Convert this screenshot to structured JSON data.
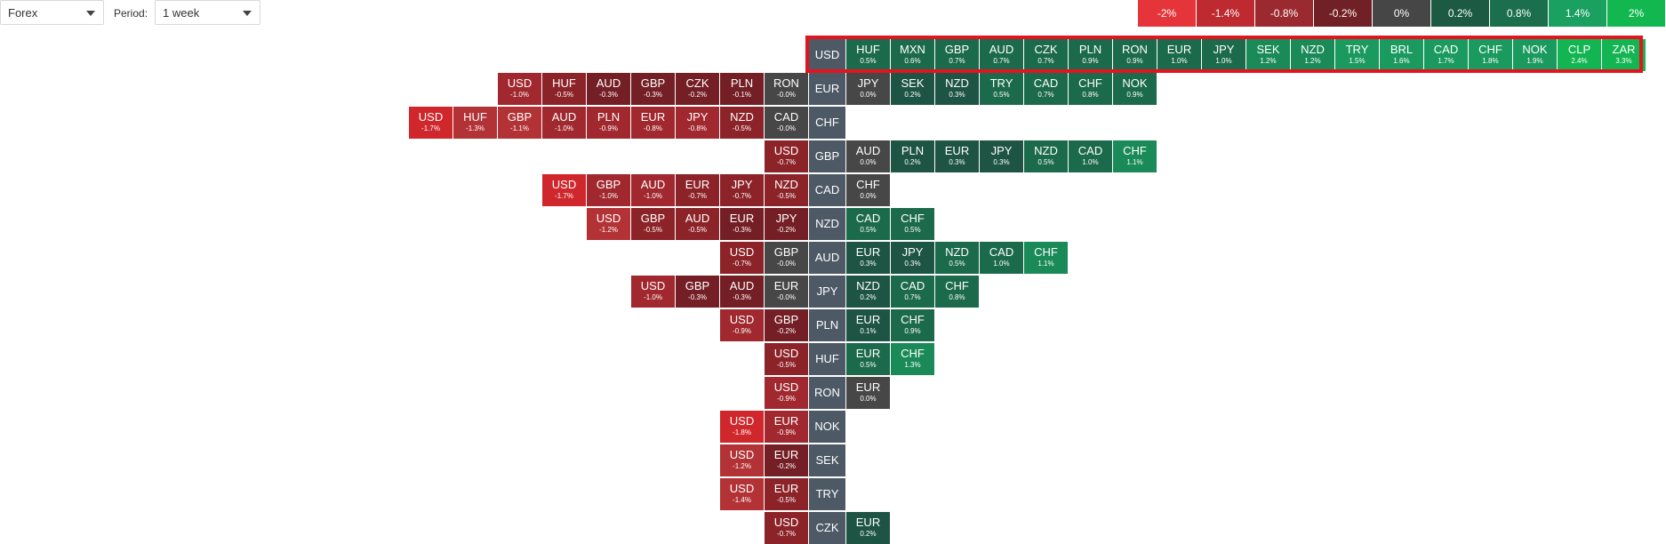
{
  "filters": {
    "market": "Forex",
    "period_label": "Period:",
    "period": "1 week"
  },
  "legend": [
    {
      "label": "-2%",
      "color": "#e5353b"
    },
    {
      "label": "-1.4%",
      "color": "#bf2a31"
    },
    {
      "label": "-0.8%",
      "color": "#9b2a30"
    },
    {
      "label": "-0.2%",
      "color": "#712025"
    },
    {
      "label": "0%",
      "color": "#464646"
    },
    {
      "label": "0.2%",
      "color": "#1c5a43"
    },
    {
      "label": "0.8%",
      "color": "#1b6f4c"
    },
    {
      "label": "1.4%",
      "color": "#1aa061"
    },
    {
      "label": "2%",
      "color": "#12b84f"
    }
  ],
  "rows": [
    {
      "base": "USD",
      "left": [],
      "right": [
        {
          "code": "HUF",
          "change": "0.5%"
        },
        {
          "code": "MXN",
          "change": "0.6%"
        },
        {
          "code": "GBP",
          "change": "0.7%"
        },
        {
          "code": "AUD",
          "change": "0.7%"
        },
        {
          "code": "CZK",
          "change": "0.7%"
        },
        {
          "code": "PLN",
          "change": "0.9%"
        },
        {
          "code": "RON",
          "change": "0.9%"
        },
        {
          "code": "EUR",
          "change": "1.0%"
        },
        {
          "code": "JPY",
          "change": "1.0%"
        },
        {
          "code": "SEK",
          "change": "1.2%"
        },
        {
          "code": "NZD",
          "change": "1.2%"
        },
        {
          "code": "TRY",
          "change": "1.5%"
        },
        {
          "code": "BRL",
          "change": "1.6%"
        },
        {
          "code": "CAD",
          "change": "1.7%"
        },
        {
          "code": "CHF",
          "change": "1.8%"
        },
        {
          "code": "NOK",
          "change": "1.9%"
        },
        {
          "code": "CLP",
          "change": "2.4%"
        },
        {
          "code": "ZAR",
          "change": "3.3%"
        }
      ]
    },
    {
      "base": "EUR",
      "left": [
        {
          "code": "USD",
          "change": "-1.0%"
        },
        {
          "code": "HUF",
          "change": "-0.5%"
        },
        {
          "code": "AUD",
          "change": "-0.3%"
        },
        {
          "code": "GBP",
          "change": "-0.3%"
        },
        {
          "code": "CZK",
          "change": "-0.2%"
        },
        {
          "code": "PLN",
          "change": "-0.1%"
        },
        {
          "code": "RON",
          "change": "-0.0%"
        }
      ],
      "right": [
        {
          "code": "JPY",
          "change": "0.0%"
        },
        {
          "code": "SEK",
          "change": "0.2%"
        },
        {
          "code": "NZD",
          "change": "0.3%"
        },
        {
          "code": "TRY",
          "change": "0.5%"
        },
        {
          "code": "CAD",
          "change": "0.7%"
        },
        {
          "code": "CHF",
          "change": "0.8%"
        },
        {
          "code": "NOK",
          "change": "0.9%"
        }
      ]
    },
    {
      "base": "CHF",
      "left": [
        {
          "code": "USD",
          "change": "-1.7%"
        },
        {
          "code": "HUF",
          "change": "-1.3%"
        },
        {
          "code": "GBP",
          "change": "-1.1%"
        },
        {
          "code": "AUD",
          "change": "-1.0%"
        },
        {
          "code": "PLN",
          "change": "-0.9%"
        },
        {
          "code": "EUR",
          "change": "-0.8%"
        },
        {
          "code": "JPY",
          "change": "-0.8%"
        },
        {
          "code": "NZD",
          "change": "-0.5%"
        },
        {
          "code": "CAD",
          "change": "-0.0%"
        }
      ],
      "right": []
    },
    {
      "base": "GBP",
      "left": [
        {
          "code": "USD",
          "change": "-0.7%"
        }
      ],
      "right": [
        {
          "code": "AUD",
          "change": "0.0%"
        },
        {
          "code": "PLN",
          "change": "0.2%"
        },
        {
          "code": "EUR",
          "change": "0.3%"
        },
        {
          "code": "JPY",
          "change": "0.3%"
        },
        {
          "code": "NZD",
          "change": "0.5%"
        },
        {
          "code": "CAD",
          "change": "1.0%"
        },
        {
          "code": "CHF",
          "change": "1.1%"
        }
      ]
    },
    {
      "base": "CAD",
      "left": [
        {
          "code": "USD",
          "change": "-1.7%"
        },
        {
          "code": "GBP",
          "change": "-1.0%"
        },
        {
          "code": "AUD",
          "change": "-1.0%"
        },
        {
          "code": "EUR",
          "change": "-0.7%"
        },
        {
          "code": "JPY",
          "change": "-0.7%"
        },
        {
          "code": "NZD",
          "change": "-0.5%"
        }
      ],
      "right": [
        {
          "code": "CHF",
          "change": "0.0%"
        }
      ]
    },
    {
      "base": "NZD",
      "left": [
        {
          "code": "USD",
          "change": "-1.2%"
        },
        {
          "code": "GBP",
          "change": "-0.5%"
        },
        {
          "code": "AUD",
          "change": "-0.5%"
        },
        {
          "code": "EUR",
          "change": "-0.3%"
        },
        {
          "code": "JPY",
          "change": "-0.2%"
        }
      ],
      "right": [
        {
          "code": "CAD",
          "change": "0.5%"
        },
        {
          "code": "CHF",
          "change": "0.5%"
        }
      ]
    },
    {
      "base": "AUD",
      "left": [
        {
          "code": "USD",
          "change": "-0.7%"
        },
        {
          "code": "GBP",
          "change": "-0.0%"
        }
      ],
      "right": [
        {
          "code": "EUR",
          "change": "0.3%"
        },
        {
          "code": "JPY",
          "change": "0.3%"
        },
        {
          "code": "NZD",
          "change": "0.5%"
        },
        {
          "code": "CAD",
          "change": "1.0%"
        },
        {
          "code": "CHF",
          "change": "1.1%"
        }
      ]
    },
    {
      "base": "JPY",
      "left": [
        {
          "code": "USD",
          "change": "-1.0%"
        },
        {
          "code": "GBP",
          "change": "-0.3%"
        },
        {
          "code": "AUD",
          "change": "-0.3%"
        },
        {
          "code": "EUR",
          "change": "-0.0%"
        }
      ],
      "right": [
        {
          "code": "NZD",
          "change": "0.2%"
        },
        {
          "code": "CAD",
          "change": "0.7%"
        },
        {
          "code": "CHF",
          "change": "0.8%"
        }
      ]
    },
    {
      "base": "PLN",
      "left": [
        {
          "code": "USD",
          "change": "-0.9%"
        },
        {
          "code": "GBP",
          "change": "-0.2%"
        }
      ],
      "right": [
        {
          "code": "EUR",
          "change": "0.1%"
        },
        {
          "code": "CHF",
          "change": "0.9%"
        }
      ]
    },
    {
      "base": "HUF",
      "left": [
        {
          "code": "USD",
          "change": "-0.5%"
        }
      ],
      "right": [
        {
          "code": "EUR",
          "change": "0.5%"
        },
        {
          "code": "CHF",
          "change": "1.3%"
        }
      ]
    },
    {
      "base": "RON",
      "left": [
        {
          "code": "USD",
          "change": "-0.9%"
        }
      ],
      "right": [
        {
          "code": "EUR",
          "change": "0.0%"
        }
      ]
    },
    {
      "base": "NOK",
      "left": [
        {
          "code": "USD",
          "change": "-1.8%"
        },
        {
          "code": "EUR",
          "change": "-0.9%"
        }
      ],
      "right": []
    },
    {
      "base": "SEK",
      "left": [
        {
          "code": "USD",
          "change": "-1.2%"
        },
        {
          "code": "EUR",
          "change": "-0.2%"
        }
      ],
      "right": []
    },
    {
      "base": "TRY",
      "left": [
        {
          "code": "USD",
          "change": "-1.4%"
        },
        {
          "code": "EUR",
          "change": "-0.5%"
        }
      ],
      "right": []
    },
    {
      "base": "CZK",
      "left": [
        {
          "code": "USD",
          "change": "-0.7%"
        }
      ],
      "right": [
        {
          "code": "EUR",
          "change": "0.2%"
        }
      ]
    }
  ]
}
